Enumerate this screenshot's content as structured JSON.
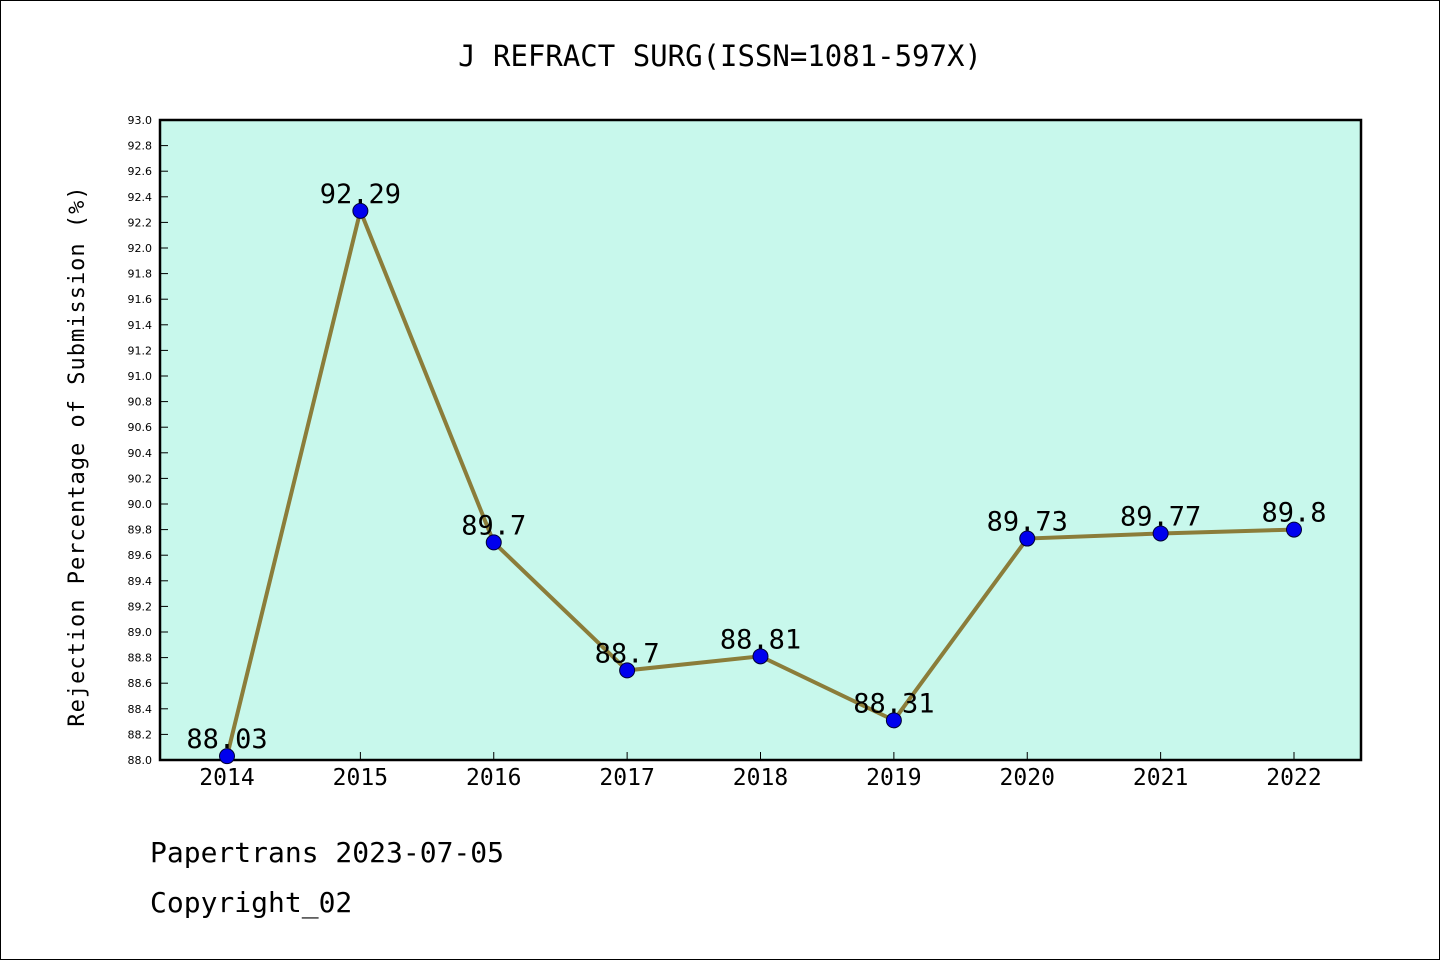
{
  "chart_data": {
    "type": "line",
    "title": "J REFRACT SURG(ISSN=1081-597X)",
    "xlabel": "",
    "ylabel": "Rejection Percentage of Submission (%)",
    "categories": [
      "2014",
      "2015",
      "2016",
      "2017",
      "2018",
      "2019",
      "2020",
      "2021",
      "2022"
    ],
    "series": [
      {
        "values": [
          88.03,
          92.29,
          89.7,
          88.7,
          88.81,
          88.31,
          89.73,
          89.77,
          89.8
        ],
        "data_labels": [
          "88.03",
          "92.29",
          "89.7",
          "88.7",
          "88.81",
          "88.31",
          "89.73",
          "89.77",
          "89.8"
        ]
      }
    ],
    "ylim": [
      88.0,
      93.0
    ],
    "yticks": [
      "88.0",
      "88.2",
      "88.4",
      "88.6",
      "88.8",
      "89.0",
      "89.2",
      "89.4",
      "89.6",
      "89.8",
      "90.0",
      "90.2",
      "90.4",
      "90.6",
      "90.8",
      "91.0",
      "91.2",
      "91.4",
      "91.6",
      "91.8",
      "92.0",
      "92.2",
      "92.4",
      "92.6",
      "92.8",
      "93.0"
    ],
    "grid": false,
    "colors": {
      "plot_background": "#c8f8ec",
      "line": "#8b7d3a",
      "marker": "#0000ee"
    }
  },
  "footer": {
    "line1": "Papertrans 2023-07-05",
    "line2": "Copyright_02"
  }
}
